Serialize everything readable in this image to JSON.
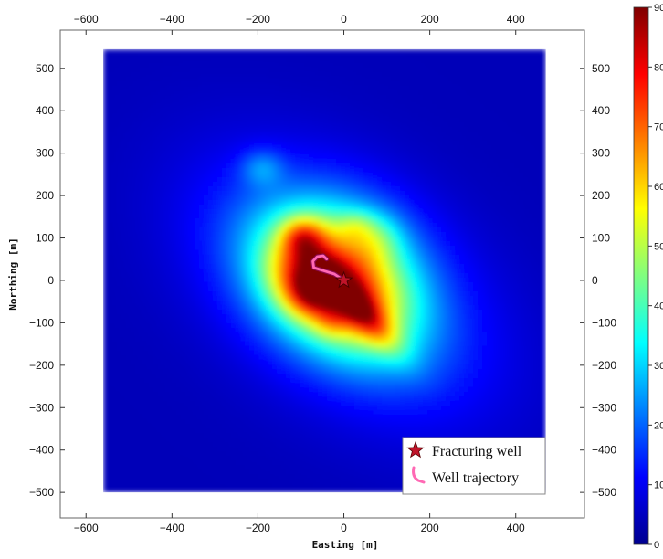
{
  "chart_data": {
    "type": "heatmap",
    "xlabel": "Easting [m]",
    "ylabel": "Northing [m]",
    "xlim": [
      -660,
      560
    ],
    "ylim": [
      -560,
      590
    ],
    "data_extent": {
      "x": [
        -560,
        470
      ],
      "y": [
        -500,
        545
      ]
    },
    "x_ticks": [
      -600,
      -400,
      -200,
      0,
      200,
      400
    ],
    "y_ticks": [
      -500,
      -400,
      -300,
      -200,
      -100,
      0,
      100,
      200,
      300,
      400,
      500
    ],
    "x_tick_labels": [
      "−600",
      "−400",
      "−200",
      "0",
      "200",
      "400"
    ],
    "y_tick_labels": [
      "−500",
      "−400",
      "−300",
      "−200",
      "−100",
      "0",
      "100",
      "200",
      "300",
      "400",
      "500"
    ],
    "colorbar": {
      "range": [
        0,
        90
      ],
      "ticks": [
        0,
        10,
        20,
        30,
        40,
        50,
        60,
        70,
        80,
        90
      ],
      "tick_labels": [
        "0",
        "10",
        "20",
        "30",
        "40",
        "50",
        "60",
        "70",
        "80",
        "90"
      ],
      "colormap": "jet"
    },
    "background_level": 5,
    "hotspots": [
      {
        "x": 0,
        "y": -20,
        "sx": 250,
        "sy": 150,
        "rot_deg": -38,
        "amp": 18
      },
      {
        "x": -20,
        "y": -10,
        "sx": 150,
        "sy": 95,
        "rot_deg": -38,
        "amp": 28
      },
      {
        "x": -10,
        "y": 20,
        "sx": 120,
        "sy": 110,
        "rot_deg": -38,
        "amp": 26
      },
      {
        "x": -95,
        "y": 105,
        "sx": 35,
        "sy": 32,
        "rot_deg": 0,
        "amp": 22
      },
      {
        "x": -110,
        "y": 20,
        "sx": 55,
        "sy": 60,
        "rot_deg": 0,
        "amp": 16
      },
      {
        "x": -75,
        "y": -30,
        "sx": 40,
        "sy": 38,
        "rot_deg": 0,
        "amp": 22
      },
      {
        "x": 30,
        "y": -60,
        "sx": 95,
        "sy": 28,
        "rot_deg": -48,
        "amp": 28
      },
      {
        "x": 20,
        "y": -55,
        "sx": 90,
        "sy": 70,
        "rot_deg": -40,
        "amp": 8
      },
      {
        "x": -30,
        "y": -100,
        "sx": 28,
        "sy": 25,
        "rot_deg": 0,
        "amp": 8
      },
      {
        "x": 80,
        "y": 100,
        "sx": 40,
        "sy": 40,
        "rot_deg": 0,
        "amp": 10
      },
      {
        "x": -190,
        "y": 265,
        "sx": 35,
        "sy": 30,
        "rot_deg": 0,
        "amp": 12
      },
      {
        "x": 30,
        "y": 130,
        "sx": 30,
        "sy": 25,
        "rot_deg": 0,
        "amp": 9
      }
    ],
    "fracturing_well": {
      "x": 0,
      "y": 0
    },
    "well_trajectory": [
      [
        0,
        0
      ],
      [
        -22,
        15
      ],
      [
        -45,
        22
      ],
      [
        -70,
        30
      ],
      [
        -72,
        45
      ],
      [
        -62,
        56
      ],
      [
        -48,
        58
      ],
      [
        -40,
        50
      ]
    ],
    "legend": {
      "position": "bottom-right",
      "items": [
        {
          "label": "Fracturing well",
          "symbol": "star",
          "color": "#c0142a"
        },
        {
          "label": "Well trajectory",
          "symbol": "line",
          "color": "#ff69b4"
        }
      ]
    },
    "grid": false
  }
}
